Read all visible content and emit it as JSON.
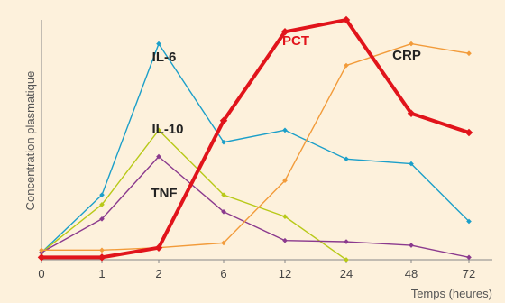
{
  "chart_data": {
    "type": "line",
    "title": "",
    "xlabel": "Temps (heures)",
    "ylabel": "Concentration plasmatique",
    "categories": [
      "0",
      "1",
      "2",
      "6",
      "12",
      "24",
      "48",
      "72"
    ],
    "ylim": [
      0,
      100
    ],
    "grid": false,
    "legend": "inline labels",
    "series": [
      {
        "name": "IL-6",
        "color": "#1b9fc9",
        "width": 1.4,
        "values": [
          3,
          27,
          90,
          49,
          54,
          42,
          40,
          16
        ]
      },
      {
        "name": "IL-10",
        "color": "#b8c918",
        "width": 1.4,
        "values": [
          3,
          23,
          54,
          27,
          18,
          0,
          null,
          null
        ]
      },
      {
        "name": "TNF",
        "color": "#8b3a8e",
        "width": 1.4,
        "values": [
          3,
          17,
          43,
          20,
          8,
          7.5,
          6,
          1
        ]
      },
      {
        "name": "CRP",
        "color": "#f29b3a",
        "width": 1.4,
        "values": [
          4,
          4,
          5,
          7,
          33,
          81,
          90,
          86
        ]
      },
      {
        "name": "PCT",
        "color": "#e1141b",
        "width": 4,
        "values": [
          1,
          1,
          5,
          58,
          95,
          100,
          61,
          53
        ]
      }
    ]
  }
}
